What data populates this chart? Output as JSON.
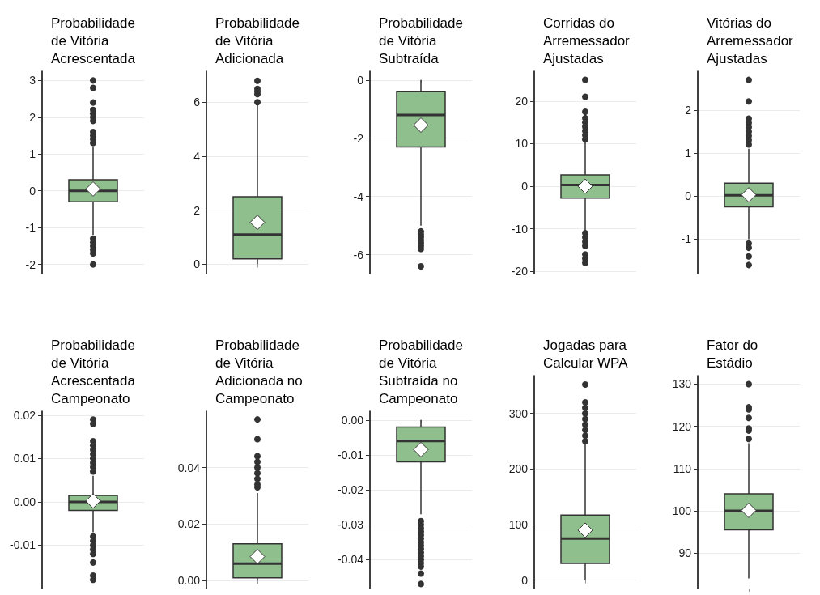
{
  "chart_data": [
    {
      "type": "box",
      "title": "Probabilidade\nde Vitória\nAcrescentada",
      "categories": [
        null
      ],
      "color": "#8fbf8c",
      "grid": "y",
      "ylim": [
        -2.25,
        3.25
      ],
      "yticks": [
        -2,
        -1,
        0,
        1,
        2,
        3
      ],
      "boxes": [
        {
          "low": -1.2,
          "q1": -0.3,
          "median": 0,
          "q3": 0.3,
          "high": 1.2,
          "mean": 0.05,
          "outliers": [
            3.0,
            2.8,
            2.4,
            2.2,
            2.1,
            2.0,
            1.9,
            1.6,
            1.5,
            1.4,
            1.3,
            -1.3,
            -1.4,
            -1.5,
            -1.6,
            -1.7,
            -2.0
          ]
        }
      ]
    },
    {
      "type": "box",
      "title": "Probabilidade\nde Vitória\nAdicionada",
      "categories": [
        null
      ],
      "color": "#8fbf8c",
      "grid": "y",
      "ylim": [
        -0.35,
        7.15
      ],
      "yticks": [
        0,
        2,
        4,
        6
      ],
      "boxes": [
        {
          "low": 0,
          "q1": 0.2,
          "median": 1.1,
          "q3": 2.5,
          "high": 5.95,
          "mean": 1.55,
          "outliers": [
            6.0,
            6.3,
            6.4,
            6.5,
            6.8
          ]
        }
      ]
    },
    {
      "type": "box",
      "title": "Probabilidade\nde Vitória\nSubtraída",
      "categories": [
        null
      ],
      "color": "#8fbf8c",
      "grid": "y",
      "ylim": [
        -6.65,
        0.3
      ],
      "yticks": [
        -6,
        -4,
        -2,
        0
      ],
      "boxes": [
        {
          "low": -5.0,
          "q1": -2.3,
          "median": -1.2,
          "q3": -0.4,
          "high": 0,
          "mean": -1.55,
          "outliers": [
            -5.2,
            -5.3,
            -5.4,
            -5.5,
            -5.6,
            -5.7,
            -5.8,
            -6.4
          ]
        }
      ]
    },
    {
      "type": "box",
      "title": "Corridas do\nArremessador\nAjustadas",
      "categories": [
        null
      ],
      "color": "#8fbf8c",
      "grid": "y",
      "ylim": [
        -20.5,
        27
      ],
      "yticks": [
        -20,
        -10,
        0,
        10,
        20
      ],
      "boxes": [
        {
          "low": -11,
          "q1": -2.8,
          "median": 0.3,
          "q3": 2.7,
          "high": 11,
          "mean": 0,
          "outliers": [
            25,
            21,
            17.5,
            16,
            15,
            14,
            13,
            12,
            11,
            -11,
            -12,
            -13,
            -14,
            -16,
            -17,
            -18
          ]
        }
      ]
    },
    {
      "type": "box",
      "title": "Vitórias do\nArremessador\nAjustadas",
      "categories": [
        null
      ],
      "color": "#8fbf8c",
      "grid": "y",
      "ylim": [
        -1.8,
        2.9
      ],
      "yticks": [
        -1,
        0,
        1,
        2
      ],
      "boxes": [
        {
          "low": -1.0,
          "q1": -0.25,
          "median": 0.02,
          "q3": 0.3,
          "high": 1.1,
          "mean": 0.03,
          "outliers": [
            2.7,
            2.2,
            1.8,
            1.7,
            1.6,
            1.5,
            1.4,
            1.3,
            1.2,
            -1.1,
            -1.2,
            -1.4,
            -1.6
          ]
        }
      ]
    },
    {
      "type": "box",
      "title": "Probabilidade\nde Vitória\nAcrescentada\nCampeonato",
      "categories": [
        null
      ],
      "color": "#8fbf8c",
      "grid": "y",
      "ylim": [
        -0.02,
        0.0209
      ],
      "yticks": [
        {
          "value": -0.01,
          "label": "-0.01"
        },
        {
          "value": 0,
          "label": "0.00"
        },
        {
          "value": 0.01,
          "label": "0.01"
        },
        {
          "value": 0.02,
          "label": "0.02"
        }
      ],
      "boxes": [
        {
          "low": -0.007,
          "q1": -0.002,
          "median": 0,
          "q3": 0.0015,
          "high": 0.006,
          "mean": 0.0002,
          "outliers": [
            0.019,
            0.018,
            0.014,
            0.013,
            0.012,
            0.011,
            0.01,
            0.009,
            0.008,
            0.007,
            -0.008,
            -0.009,
            -0.01,
            -0.011,
            -0.012,
            -0.014,
            -0.017,
            -0.018
          ]
        }
      ]
    },
    {
      "type": "box",
      "title": "Probabilidade\nde Vitória\nAdicionada no\nCampeonato",
      "categories": [
        null
      ],
      "color": "#8fbf8c",
      "grid": "y",
      "ylim": [
        -0.0028,
        0.0599
      ],
      "yticks": [
        {
          "value": 0,
          "label": "0.00"
        },
        {
          "value": 0.02,
          "label": "0.02"
        },
        {
          "value": 0.04,
          "label": "0.04"
        }
      ],
      "boxes": [
        {
          "low": 0,
          "q1": 0.001,
          "median": 0.006,
          "q3": 0.013,
          "high": 0.031,
          "mean": 0.0085,
          "outliers": [
            0.057,
            0.05,
            0.044,
            0.042,
            0.04,
            0.038,
            0.036,
            0.034,
            0.033
          ]
        }
      ]
    },
    {
      "type": "box",
      "title": "Probabilidade\nde Vitória\nSubtraída no\nCampeonato",
      "categories": [
        null
      ],
      "color": "#8fbf8c",
      "grid": "y",
      "ylim": [
        -0.0483,
        0.0025
      ],
      "yticks": [
        {
          "value": -0.04,
          "label": "-0.04"
        },
        {
          "value": -0.03,
          "label": "-0.03"
        },
        {
          "value": -0.02,
          "label": "-0.02"
        },
        {
          "value": -0.01,
          "label": "-0.01"
        },
        {
          "value": 0,
          "label": "0.00"
        }
      ],
      "boxes": [
        {
          "low": -0.027,
          "q1": -0.012,
          "median": -0.006,
          "q3": -0.002,
          "high": 0,
          "mean": -0.0085,
          "outliers": [
            -0.029,
            -0.03,
            -0.031,
            -0.032,
            -0.033,
            -0.034,
            -0.035,
            -0.036,
            -0.037,
            -0.038,
            -0.039,
            -0.04,
            -0.041,
            -0.042,
            -0.044,
            -0.047
          ]
        }
      ]
    },
    {
      "type": "box",
      "title": "Jogadas para\nCalcular WPA",
      "categories": [
        null
      ],
      "color": "#8fbf8c",
      "grid": "y",
      "ylim": [
        -15,
        368
      ],
      "yticks": [
        0,
        100,
        200,
        300
      ],
      "boxes": [
        {
          "low": 0,
          "q1": 30,
          "median": 75,
          "q3": 117,
          "high": 248,
          "mean": 90,
          "outliers": [
            352,
            320,
            310,
            300,
            290,
            280,
            270,
            260,
            250
          ]
        }
      ]
    },
    {
      "type": "box",
      "title": "Fator do\nEstádio",
      "categories": [
        null
      ],
      "color": "#8fbf8c",
      "grid": "y",
      "ylim": [
        81.6,
        132
      ],
      "yticks": [
        90,
        100,
        110,
        120,
        130
      ],
      "boxes": [
        {
          "low": 84,
          "q1": 95.5,
          "median": 100,
          "q3": 104,
          "high": 116,
          "mean": 100.1,
          "outliers": [
            130,
            124.5,
            124,
            122,
            119.5,
            119,
            117
          ]
        }
      ]
    }
  ]
}
